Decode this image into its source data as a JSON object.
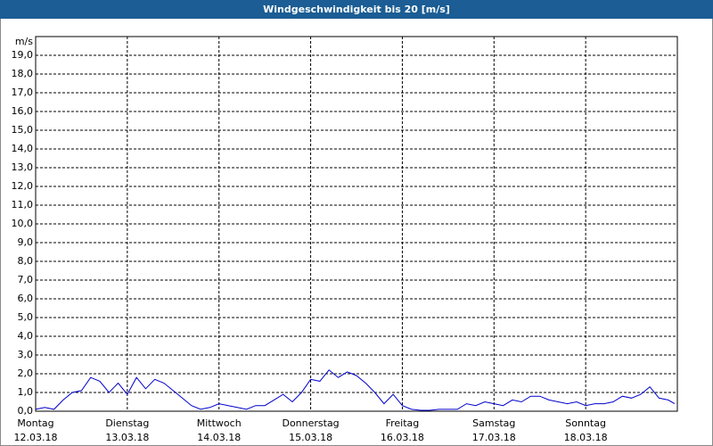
{
  "chart_data": {
    "type": "line",
    "title": "Windgeschwindigkeit bis 20 [m/s]",
    "y_unit": "m/s",
    "xlim": [
      0,
      7
    ],
    "ylim": [
      0,
      20
    ],
    "xticks": [
      {
        "value": 0,
        "label": "Montag"
      },
      {
        "value": 1,
        "label": "Dienstag"
      },
      {
        "value": 2,
        "label": "Mittwoch"
      },
      {
        "value": 3,
        "label": "Donnerstag"
      },
      {
        "value": 4,
        "label": "Freitag"
      },
      {
        "value": 5,
        "label": "Samstag"
      },
      {
        "value": 6,
        "label": "Sonntag"
      }
    ],
    "xtick_dates": [
      "12.03.18",
      "13.03.18",
      "14.03.18",
      "15.03.18",
      "16.03.18",
      "17.03.18",
      "18.03.18"
    ],
    "yticks": [
      {
        "value": 0,
        "label": "0,0"
      },
      {
        "value": 1,
        "label": "1,0"
      },
      {
        "value": 2,
        "label": "2,0"
      },
      {
        "value": 3,
        "label": "3,0"
      },
      {
        "value": 4,
        "label": "4,0"
      },
      {
        "value": 5,
        "label": "5,0"
      },
      {
        "value": 6,
        "label": "6,0"
      },
      {
        "value": 7,
        "label": "7,0"
      },
      {
        "value": 8,
        "label": "8,0"
      },
      {
        "value": 9,
        "label": "9,0"
      },
      {
        "value": 10,
        "label": "10,0"
      },
      {
        "value": 11,
        "label": "11,0"
      },
      {
        "value": 12,
        "label": "12,0"
      },
      {
        "value": 13,
        "label": "13,0"
      },
      {
        "value": 14,
        "label": "14,0"
      },
      {
        "value": 15,
        "label": "15,0"
      },
      {
        "value": 16,
        "label": "16,0"
      },
      {
        "value": 17,
        "label": "17,0"
      },
      {
        "value": 18,
        "label": "18,0"
      },
      {
        "value": 19,
        "label": "19,0"
      }
    ],
    "grid": true,
    "series": [
      {
        "color": "#0000cc",
        "x": [
          0,
          0.1,
          0.2,
          0.3,
          0.4,
          0.5,
          0.6,
          0.7,
          0.8,
          0.9,
          1,
          1.1,
          1.2,
          1.3,
          1.4,
          1.5,
          1.6,
          1.7,
          1.8,
          1.9,
          2,
          2.1,
          2.2,
          2.3,
          2.4,
          2.5,
          2.6,
          2.7,
          2.8,
          2.9,
          3,
          3.1,
          3.2,
          3.3,
          3.4,
          3.5,
          3.6,
          3.7,
          3.8,
          3.9,
          4,
          4.1,
          4.2,
          4.3,
          4.4,
          4.5,
          4.6,
          4.7,
          4.8,
          4.9,
          5,
          5.1,
          5.2,
          5.3,
          5.4,
          5.5,
          5.6,
          5.7,
          5.8,
          5.9,
          6,
          6.1,
          6.2,
          6.3,
          6.4,
          6.5,
          6.6,
          6.7,
          6.8,
          6.9,
          6.97
        ],
        "values": [
          0.1,
          0.2,
          0.1,
          0.6,
          1.0,
          1.1,
          1.8,
          1.6,
          1.0,
          1.5,
          0.9,
          1.8,
          1.2,
          1.7,
          1.5,
          1.1,
          0.7,
          0.3,
          0.1,
          0.2,
          0.4,
          0.3,
          0.2,
          0.1,
          0.3,
          0.3,
          0.6,
          0.9,
          0.5,
          1.0,
          1.7,
          1.6,
          2.2,
          1.8,
          2.1,
          1.9,
          1.5,
          1.0,
          0.4,
          0.9,
          0.3,
          0.1,
          0.05,
          0.05,
          0.1,
          0.1,
          0.1,
          0.4,
          0.3,
          0.5,
          0.4,
          0.3,
          0.6,
          0.5,
          0.8,
          0.8,
          0.6,
          0.5,
          0.4,
          0.5,
          0.3,
          0.4,
          0.4,
          0.5,
          0.8,
          0.7,
          0.9,
          1.3,
          0.7,
          0.6,
          0.4
        ]
      }
    ]
  }
}
